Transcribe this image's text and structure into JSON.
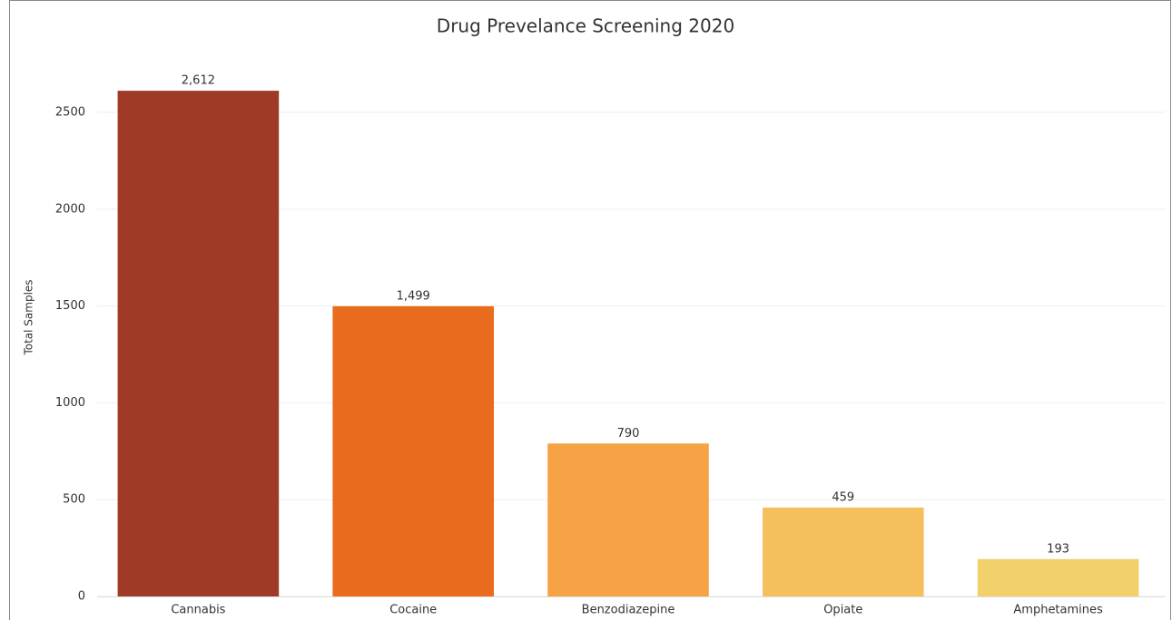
{
  "chart_data": {
    "type": "bar",
    "title": "Drug Prevelance Screening 2020",
    "y_label": "Total Samples",
    "categories": [
      "Cannabis",
      "Cocaine",
      "Benzodiazepine",
      "Opiate",
      "Amphetamines"
    ],
    "values": [
      2612,
      1499,
      790,
      459,
      193
    ],
    "value_labels": [
      "2,612",
      "1,499",
      "790",
      "459",
      "193"
    ],
    "colors": [
      "#9e3a26",
      "#e96b1e",
      "#f5a345",
      "#f6bf5e",
      "#f2d16a"
    ],
    "ylim": [
      0,
      2870
    ],
    "yticks": [
      0,
      500,
      1000,
      1500,
      2000,
      2500
    ],
    "grid": true
  }
}
